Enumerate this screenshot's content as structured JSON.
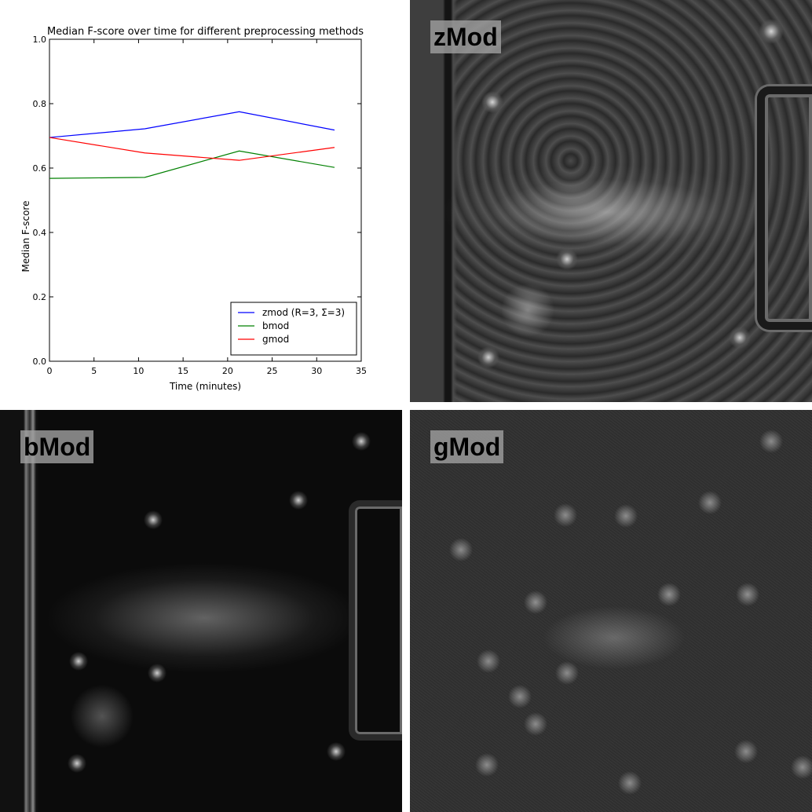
{
  "chart_data": {
    "type": "line",
    "title": "Median F-score over time for different preprocessing methods",
    "xlabel": "Time (minutes)",
    "ylabel": "Median F-score",
    "xlim": [
      0,
      35
    ],
    "ylim": [
      0.0,
      1.0
    ],
    "xticks": [
      0,
      5,
      10,
      15,
      20,
      25,
      30,
      35
    ],
    "yticks": [
      0.0,
      0.2,
      0.4,
      0.6,
      0.8,
      1.0
    ],
    "xtick_labels": [
      "0",
      "5",
      "10",
      "15",
      "20",
      "25",
      "30",
      "35"
    ],
    "ytick_labels": [
      "0.0",
      "0.2",
      "0.4",
      "0.6",
      "0.8",
      "1.0"
    ],
    "x": [
      0,
      10.7,
      21.3,
      32
    ],
    "series": [
      {
        "name": "zmod (R=3, Σ=3)",
        "color": "#0000ff",
        "values": [
          0.695,
          0.722,
          0.775,
          0.718
        ]
      },
      {
        "name": "bmod",
        "color": "#008000",
        "values": [
          0.568,
          0.571,
          0.653,
          0.602
        ]
      },
      {
        "name": "gmod",
        "color": "#ff0000",
        "values": [
          0.695,
          0.647,
          0.624,
          0.664
        ]
      }
    ],
    "legend": "lower-right",
    "grid": false
  },
  "panels": {
    "zmod_label": "zMod",
    "bmod_label": "bMod",
    "gmod_label": "gMod"
  }
}
